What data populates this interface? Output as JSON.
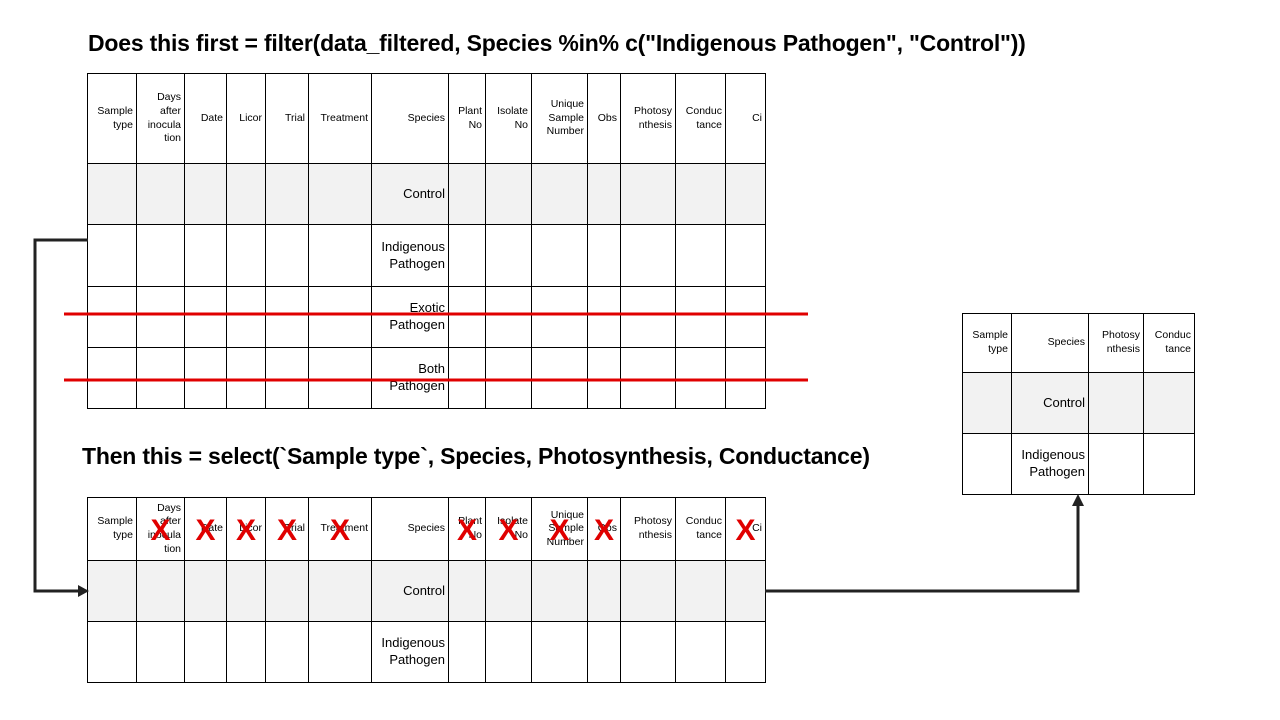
{
  "heading_filter": "Does this first = filter(data_filtered, Species %in% c(\"Indigenous Pathogen\", \"Control\"))",
  "heading_select": "Then this = select(`Sample type`, Species, Photosynthesis, Conductance)",
  "full_columns": [
    "Sample\ntype",
    "Days\nafter\ninocula\ntion",
    "Date",
    "Licor",
    "Trial",
    "Treatment",
    "Species",
    "Plant\nNo",
    "Isolate\nNo",
    "Unique\nSample\nNumber",
    "Obs",
    "Photosy\nnthesis",
    "Conduc\ntance",
    "Ci"
  ],
  "filter_species_rows": [
    "Control",
    "Indigenous\nPathogen",
    "Exotic\nPathogen",
    "Both\nPathogen"
  ],
  "kept_species_rows": [
    "Control",
    "Indigenous\nPathogen"
  ],
  "result_columns": [
    "Sample\ntype",
    "Species",
    "Photosy\nnthesis",
    "Conduc\ntance"
  ],
  "struck_rows": [
    2,
    3
  ],
  "dropped_column_indices": [
    1,
    2,
    3,
    4,
    5,
    7,
    8,
    9,
    10,
    13
  ],
  "x_mark": "X",
  "colors": {
    "strike": "#e00000",
    "arrow": "#222222",
    "shaded_row": "#f2f2f2"
  }
}
